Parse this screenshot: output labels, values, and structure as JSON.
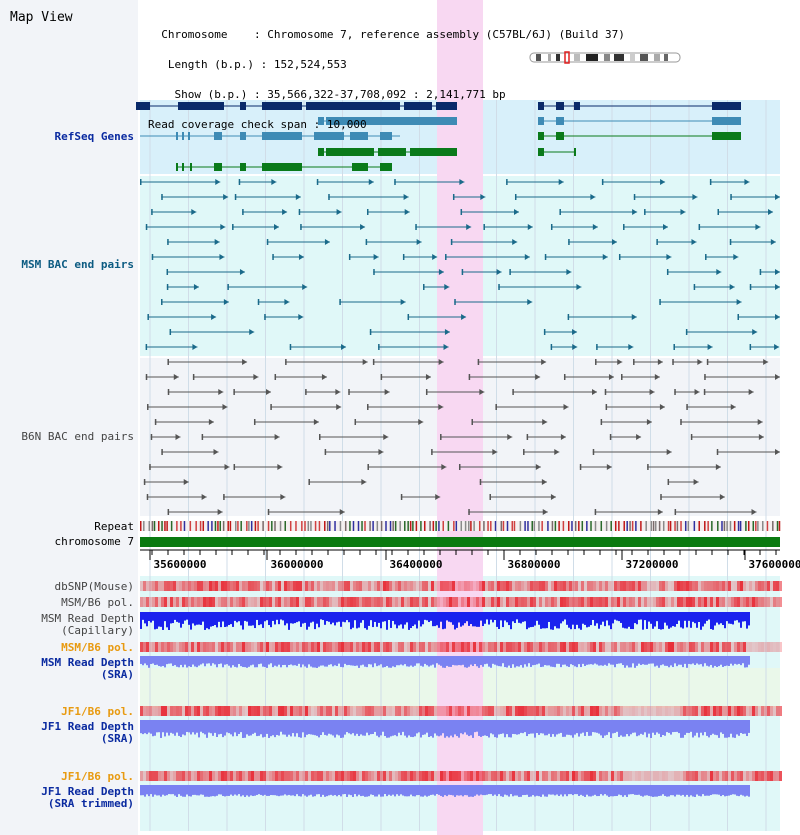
{
  "view": {
    "title": "Map View",
    "info": {
      "chromosome_label": "Chromosome",
      "chromosome_value": "Chromosome 7, reference assembly (C57BL/6J) (Build 37)",
      "length_label": "Length (b.p.)",
      "length_value": "152,524,553",
      "show_label": "Show (b.p.)",
      "show_value": "35,566,322-37,708,092 : 2,141,771 bp",
      "coverage_label": "Read coverage check span",
      "coverage_value": "10,000"
    }
  },
  "tracks": {
    "refseq": "RefSeq Genes",
    "msm_bac": "MSM BAC end pairs",
    "b6n_bac": "B6N BAC end pairs",
    "repeat": "Repeat",
    "chromosome": "chromosome 7",
    "dbsnp": "dbSNP(Mouse)",
    "msm_b6_pol_1": "MSM/B6 pol.",
    "msm_depth_cap_1": "MSM Read Depth",
    "msm_depth_cap_2": "(Capillary)",
    "msm_b6_pol_2": "MSM/B6 pol.",
    "msm_depth_sra_1": "MSM Read Depth",
    "msm_depth_sra_2": "(SRA)",
    "jf1_b6_pol_1": "JF1/B6 pol.",
    "jf1_depth_sra_1": "JF1 Read Depth",
    "jf1_depth_sra_2": "(SRA)",
    "jf1_b6_pol_2": "JF1/B6 pol.",
    "jf1_depth_trim_1": "JF1 Read Depth",
    "jf1_depth_trim_2": "(SRA trimmed)"
  },
  "axis": {
    "ticks": [
      "35600000",
      "36000000",
      "36400000",
      "36800000",
      "37200000",
      "37600000"
    ]
  },
  "colors": {
    "highlight": "#f8d8f2",
    "refseq_dark": "#0a2a6a",
    "refseq_mid": "#3e8bb5",
    "refseq_green": "#0a7a1a",
    "msm_bac": "#1a6a8a",
    "b6n_bac": "#555555",
    "snp_red": "#e8303a",
    "depth_blue": "#1a22ee",
    "depth_light": "#7a82f2",
    "chrom_green": "#0a7a10"
  }
}
